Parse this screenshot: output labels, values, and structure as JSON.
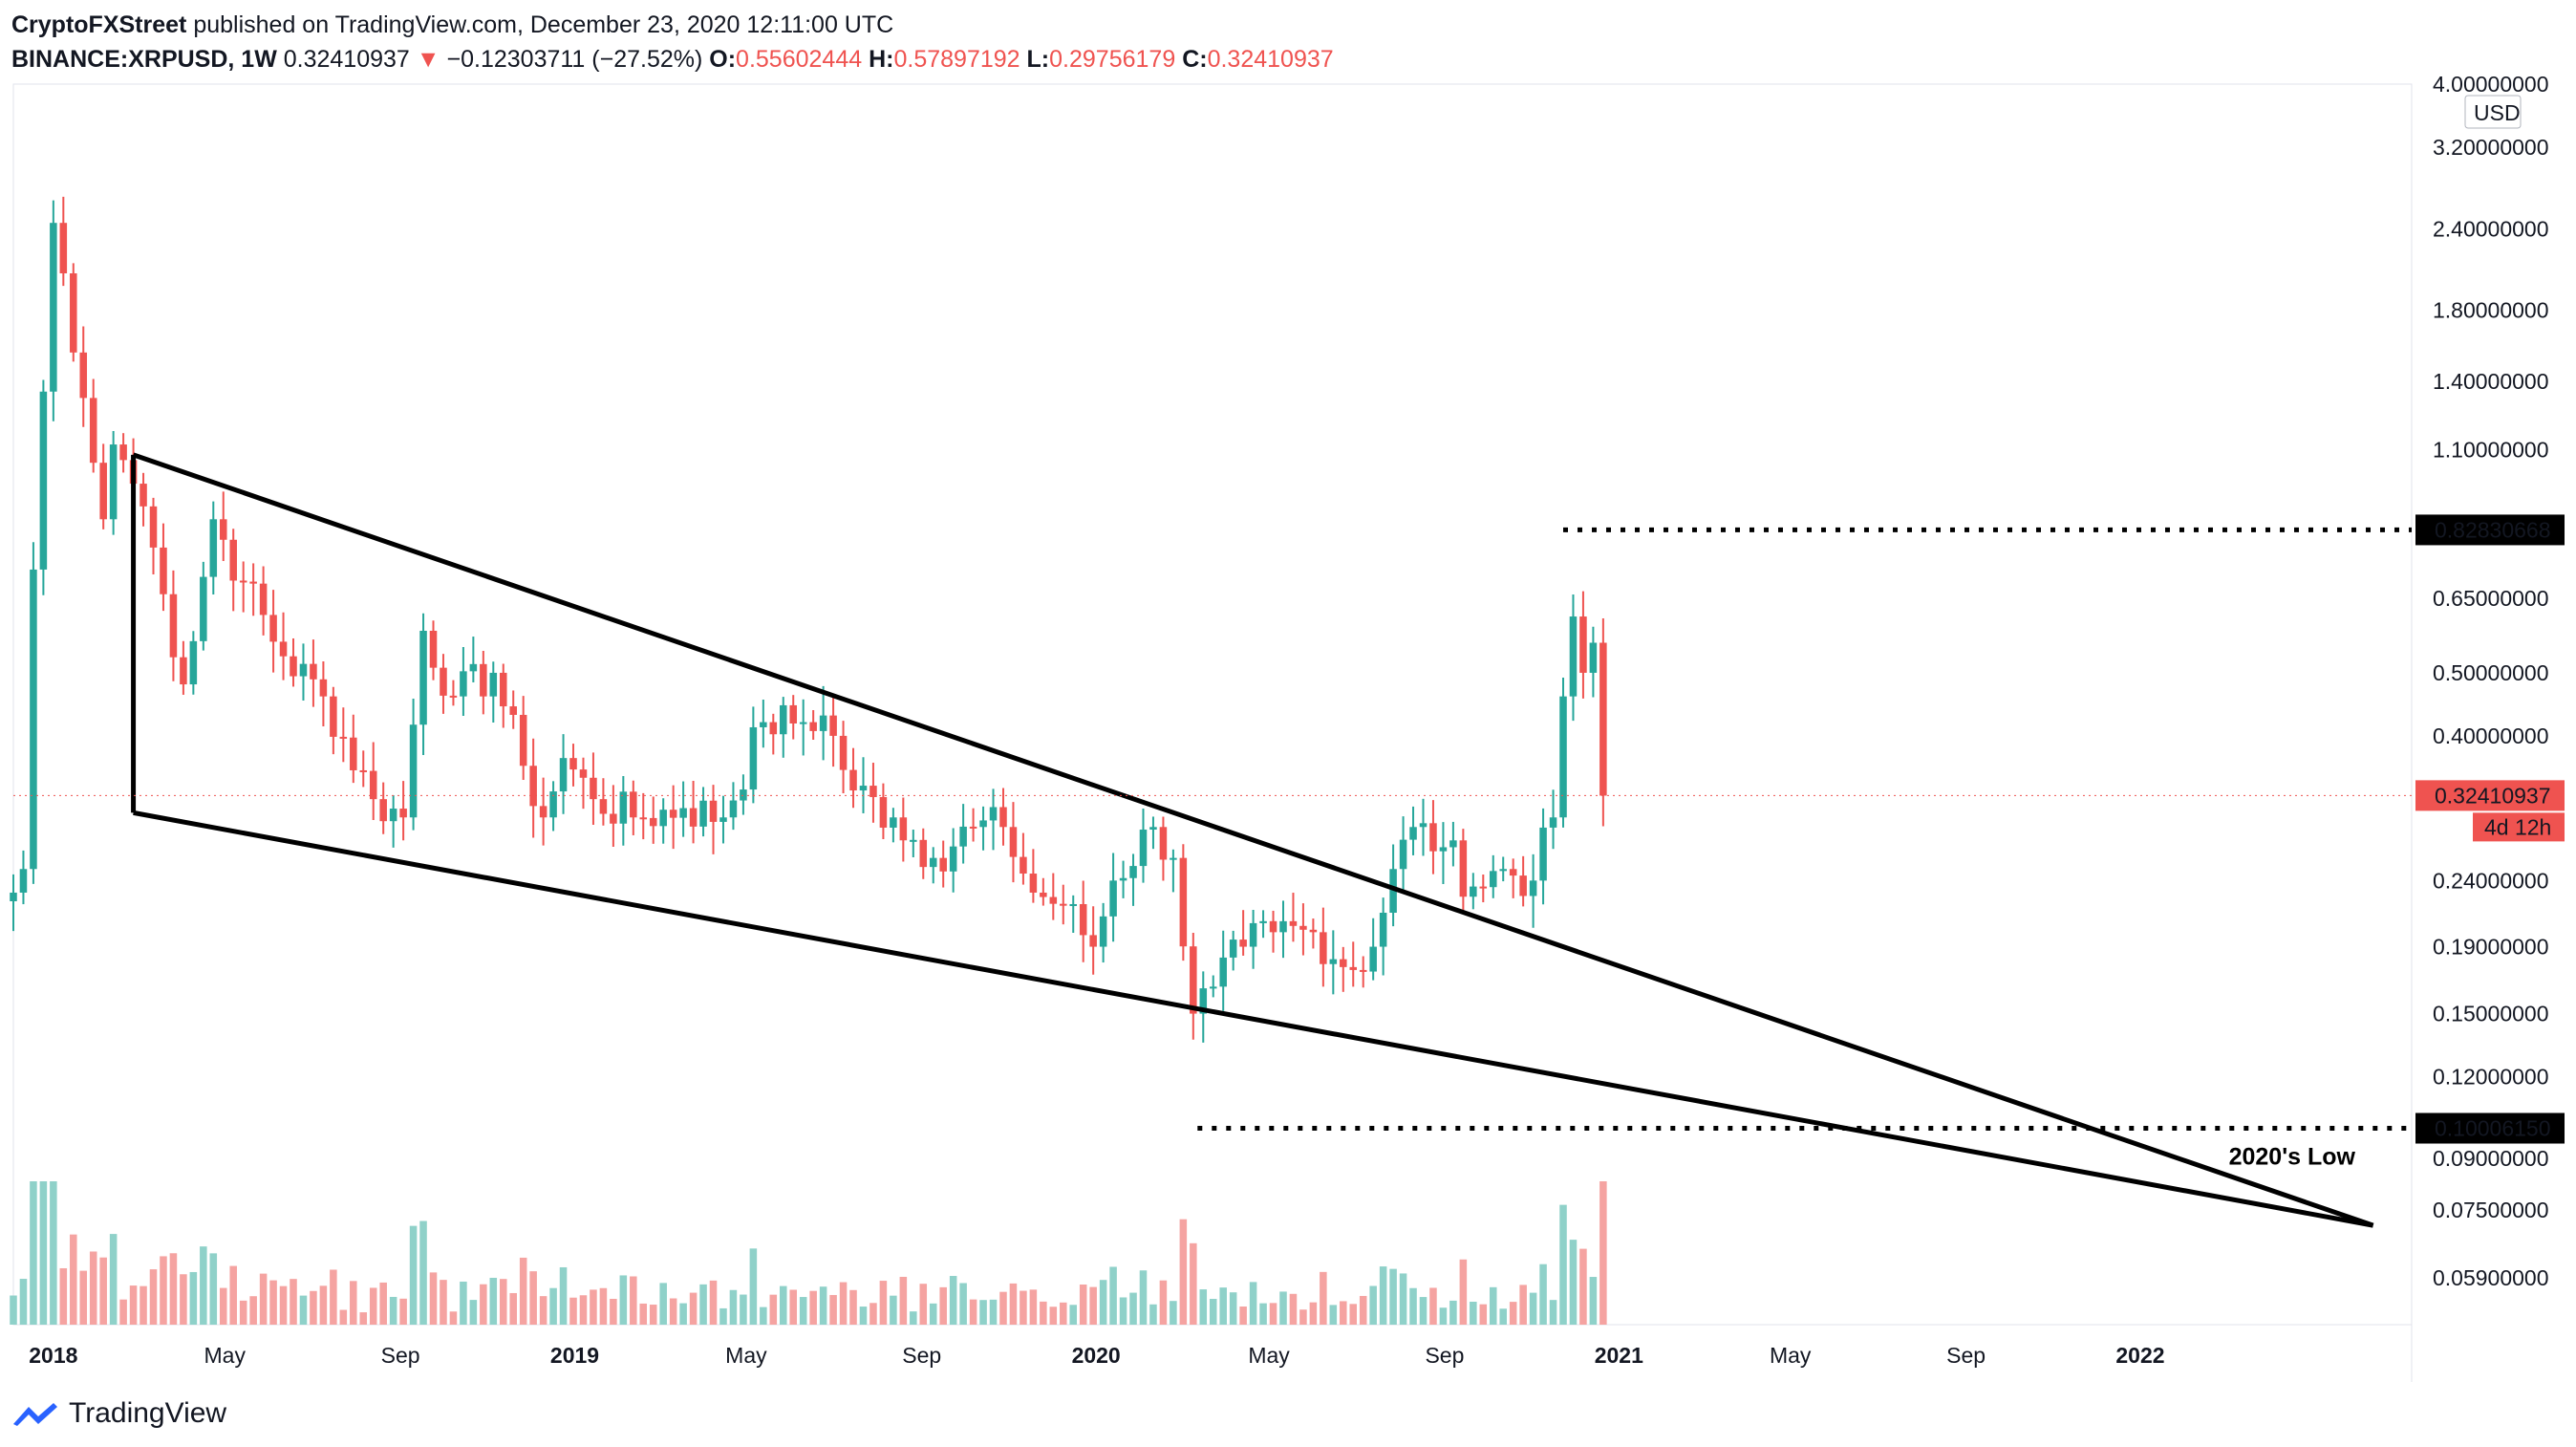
{
  "header": {
    "author": "CryptoFXStreet",
    "published": "published on TradingView.com, December 23, 2020 12:11:00 UTC",
    "symbol": "BINANCE:XRPUSD, 1W",
    "price": "0.32410937",
    "change_arrow": "▼",
    "change": "−0.12303711 (−27.52%)",
    "o_label": "O:",
    "o": "0.55602444",
    "h_label": "H:",
    "h": "0.57897192",
    "l_label": "L:",
    "l": "0.29756179",
    "c_label": "C:",
    "c": "0.32410937"
  },
  "footer": {
    "brand": "TradingView",
    "icon": "tradingview-logo-icon"
  },
  "colors": {
    "up": "#26a69a",
    "down": "#ef5350",
    "up_vol": "#8fd1c9",
    "down_vol": "#f5a3a1",
    "text": "#131722",
    "label_bg": "#000000",
    "price_tag": "#ef5350"
  },
  "chart_data": {
    "type": "candlestick",
    "scale": "log",
    "currency": "USD",
    "ylim": [
      0.05,
      4.0
    ],
    "y_ticks": [
      "4.00000000",
      "3.20000000",
      "2.40000000",
      "1.80000000",
      "1.40000000",
      "1.10000000",
      "0.65000000",
      "0.50000000",
      "0.40000000",
      "0.24000000",
      "0.19000000",
      "0.15000000",
      "0.12000000",
      "0.09000000",
      "0.07500000",
      "0.05900000"
    ],
    "x_ticks": [
      "2018",
      "May",
      "Sep",
      "2019",
      "May",
      "Sep",
      "2020",
      "May",
      "Sep",
      "2021",
      "May",
      "Sep",
      "2022"
    ],
    "xlim": [
      "2017-12-04",
      "2022-07-10"
    ],
    "price_labels": {
      "high_level": "0.82830668",
      "low_level": "0.10006150",
      "current": "0.32410937",
      "countdown": "4d 12h"
    },
    "annotations": {
      "low_text": "2020's Low"
    },
    "wedge": {
      "upper_line": [
        [
          "2018-02-26",
          1.08
        ],
        [
          "2022-06-13",
          0.071
        ]
      ],
      "lower_line": [
        [
          "2018-02-26",
          0.305
        ],
        [
          "2022-06-13",
          0.071
        ]
      ],
      "left_edge": [
        [
          "2018-02-26",
          1.08
        ],
        [
          "2018-02-26",
          0.305
        ]
      ]
    },
    "horizontal_levels": [
      {
        "value": 0.8283,
        "from": "2020-11-23",
        "to": "2022-07-10"
      },
      {
        "value": 0.10006,
        "from": "2020-03-12",
        "to": "2022-07-10"
      }
    ],
    "anchors": [
      [
        "2017-12-04",
        0.23
      ],
      [
        "2017-12-11",
        0.25
      ],
      [
        "2017-12-18",
        0.72
      ],
      [
        "2017-12-25",
        1.35
      ],
      [
        "2018-01-01",
        2.45
      ],
      [
        "2018-01-08",
        2.05
      ],
      [
        "2018-01-15",
        1.55
      ],
      [
        "2018-01-22",
        1.32
      ],
      [
        "2018-01-29",
        1.05
      ],
      [
        "2018-02-05",
        0.86
      ],
      [
        "2018-02-12",
        1.12
      ],
      [
        "2018-02-19",
        1.06
      ],
      [
        "2018-03-05",
        0.9
      ],
      [
        "2018-03-19",
        0.66
      ],
      [
        "2018-04-02",
        0.48
      ],
      [
        "2018-04-23",
        0.86
      ],
      [
        "2018-05-14",
        0.69
      ],
      [
        "2018-06-11",
        0.53
      ],
      [
        "2018-07-09",
        0.46
      ],
      [
        "2018-08-13",
        0.32
      ],
      [
        "2018-09-03",
        0.3
      ],
      [
        "2018-09-17",
        0.58
      ],
      [
        "2018-10-08",
        0.46
      ],
      [
        "2018-11-05",
        0.5
      ],
      [
        "2018-11-26",
        0.36
      ],
      [
        "2018-12-10",
        0.3
      ],
      [
        "2018-12-24",
        0.37
      ],
      [
        "2019-01-14",
        0.32
      ],
      [
        "2019-02-11",
        0.3
      ],
      [
        "2019-03-18",
        0.31
      ],
      [
        "2019-04-15",
        0.3
      ],
      [
        "2019-05-13",
        0.42
      ],
      [
        "2019-06-10",
        0.42
      ],
      [
        "2019-06-24",
        0.43
      ],
      [
        "2019-07-15",
        0.33
      ],
      [
        "2019-08-12",
        0.3
      ],
      [
        "2019-09-09",
        0.26
      ],
      [
        "2019-10-07",
        0.29
      ],
      [
        "2019-10-28",
        0.29
      ],
      [
        "2019-11-18",
        0.23
      ],
      [
        "2019-12-09",
        0.22
      ],
      [
        "2019-12-30",
        0.19
      ],
      [
        "2020-01-13",
        0.24
      ],
      [
        "2020-02-10",
        0.29
      ],
      [
        "2020-02-24",
        0.26
      ],
      [
        "2020-03-09",
        0.15
      ],
      [
        "2020-03-23",
        0.165
      ],
      [
        "2020-04-13",
        0.19
      ],
      [
        "2020-05-04",
        0.2
      ],
      [
        "2020-06-01",
        0.2
      ],
      [
        "2020-06-29",
        0.175
      ],
      [
        "2020-07-13",
        0.19
      ],
      [
        "2020-07-27",
        0.25
      ],
      [
        "2020-08-10",
        0.29
      ],
      [
        "2020-08-31",
        0.27
      ],
      [
        "2020-09-21",
        0.235
      ],
      [
        "2020-10-12",
        0.25
      ],
      [
        "2020-11-02",
        0.24
      ],
      [
        "2020-11-16",
        0.3
      ],
      [
        "2020-11-23",
        0.46
      ],
      [
        "2020-11-30",
        0.61
      ],
      [
        "2020-12-07",
        0.5
      ],
      [
        "2020-12-14",
        0.556
      ],
      [
        "2020-12-21",
        0.324
      ]
    ],
    "vol_max": 1.0
  }
}
